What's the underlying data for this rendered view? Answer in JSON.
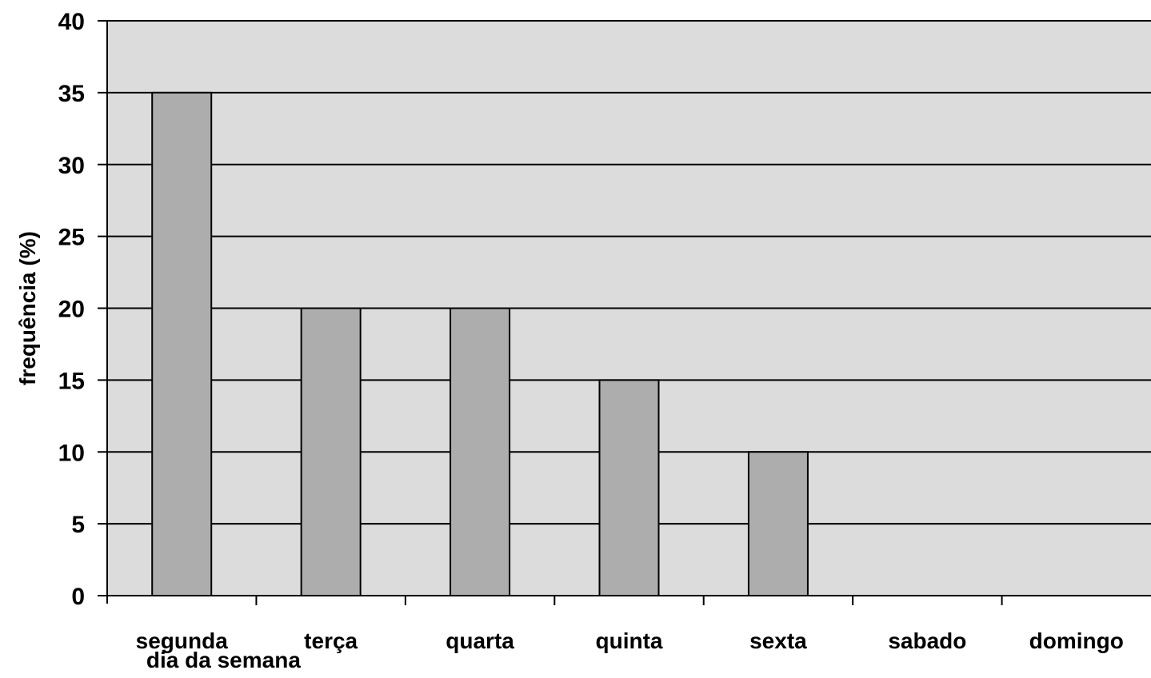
{
  "chart_data": {
    "type": "bar",
    "title": "",
    "xlabel": "dia da semana",
    "ylabel": "frequência (%)",
    "categories": [
      "segunda",
      "terça",
      "quarta",
      "quinta",
      "sexta",
      "sabado",
      "domingo"
    ],
    "values": [
      35,
      20,
      20,
      15,
      10,
      0,
      0
    ],
    "ylim": [
      0,
      40
    ],
    "yticks": [
      0,
      5,
      10,
      15,
      20,
      25,
      30,
      35,
      40
    ],
    "grid": true,
    "legend": "none",
    "colors": {
      "plot_background": "#dcdcdc",
      "bar_fill": "#adadad",
      "bar_stroke": "#000000",
      "gridline": "#000000"
    }
  }
}
